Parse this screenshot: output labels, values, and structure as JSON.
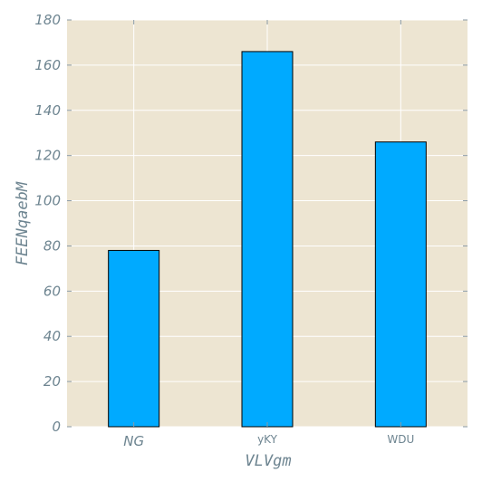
{
  "chart_data": {
    "type": "bar",
    "categories": [
      "NG",
      "yKY",
      "WDU"
    ],
    "values": [
      78,
      166,
      126
    ],
    "xlabel": "VLVgm",
    "ylabel": "FEENqaebM",
    "ylim": [
      0,
      180
    ],
    "yticks": [
      0,
      20,
      40,
      60,
      80,
      100,
      120,
      140,
      160,
      180
    ],
    "grid": true,
    "colors": {
      "bar": "#00aaff",
      "bar_edge": "#000000",
      "plot_background": "#ede5d2",
      "grid": "#ffffff",
      "text": "#6e8591"
    }
  }
}
